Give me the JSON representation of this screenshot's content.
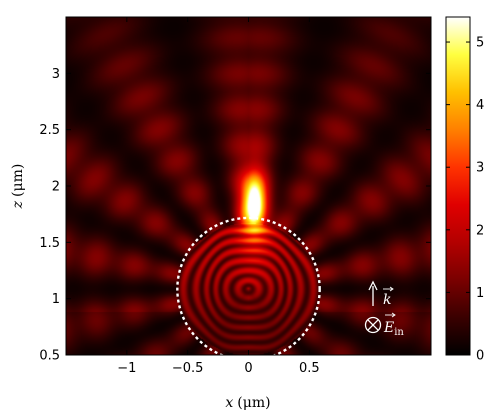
{
  "chart_data": {
    "type": "heatmap",
    "title": "",
    "xlabel": {
      "var": "x",
      "unit": "(μm)"
    },
    "ylabel": {
      "var": "z",
      "unit": "(μm)"
    },
    "xlim": [
      -1.5,
      1.5
    ],
    "ylim": [
      0.5,
      3.5
    ],
    "x_ticks": [
      -1,
      -0.5,
      0,
      0.5
    ],
    "x_tick_labels": [
      "−1",
      "−0.5",
      "0",
      "0.5"
    ],
    "y_ticks": [
      0.5,
      1,
      1.5,
      2,
      2.5,
      3
    ],
    "y_tick_labels": [
      "0.5",
      "1",
      "1.5",
      "2",
      "2.5",
      "3"
    ],
    "colorbar": {
      "min": 0,
      "max": 5.4,
      "ticks": [
        0,
        1,
        2,
        3,
        4,
        5
      ],
      "tick_labels": [
        "0",
        "1",
        "2",
        "3",
        "4",
        "5"
      ],
      "colormap": [
        "#000000",
        "#3a0000",
        "#7a0000",
        "#b30000",
        "#e00000",
        "#ff3300",
        "#ff8000",
        "#ffc000",
        "#ffff40",
        "#ffffff"
      ]
    },
    "sphere_outline": {
      "center_x": 0,
      "center_z": 1.085,
      "radius": 0.585,
      "style": "dashed",
      "color": "#ffffff"
    },
    "hotspot": {
      "x": 0.05,
      "z": 1.85,
      "peak": 5.3
    },
    "grid": false,
    "annotations": {
      "wave_vector": "k",
      "field": "E",
      "field_subscript": "in"
    }
  }
}
